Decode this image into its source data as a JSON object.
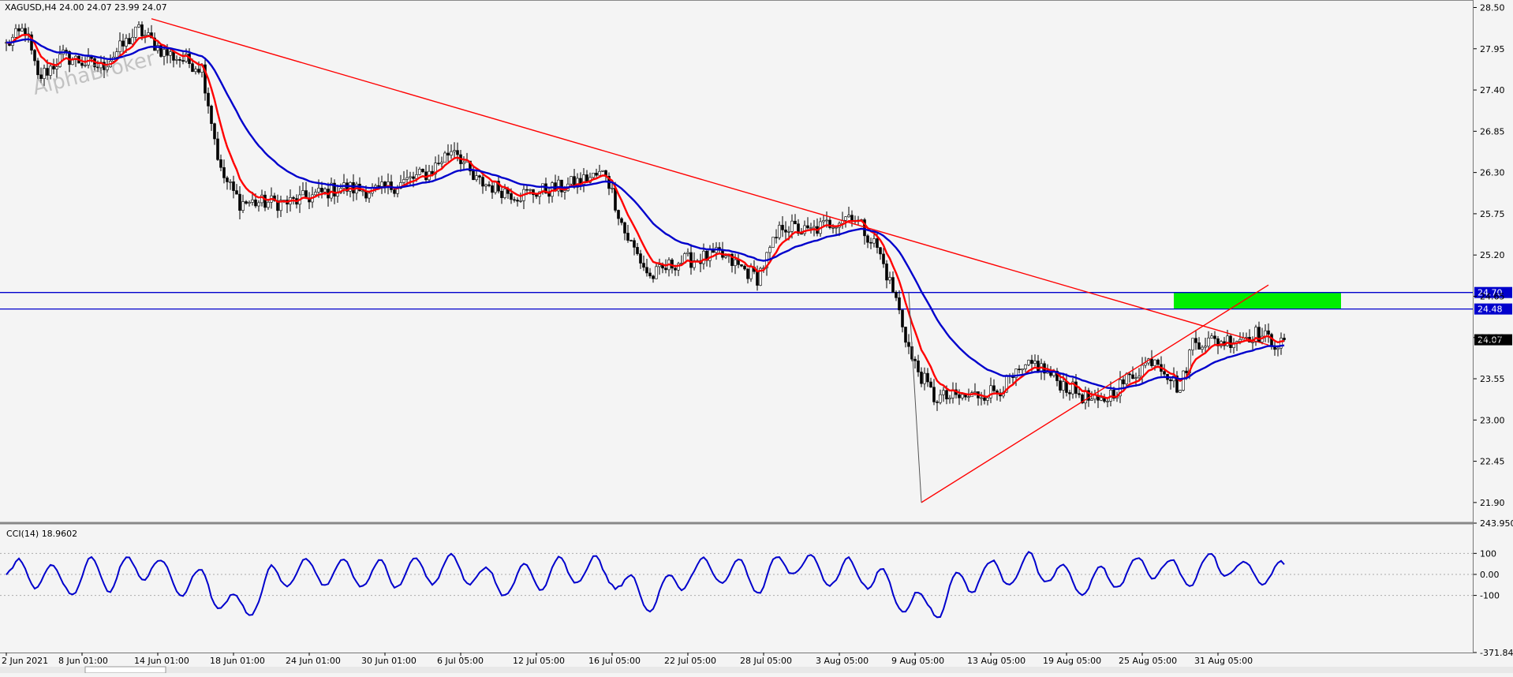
{
  "chart_data": [
    {
      "type": "candlestick",
      "symbol": "XAGUSD,H4",
      "ohlc_label": "24.00 24.07 23.99 24.07",
      "watermark": "AlphaBroker",
      "ylim": [
        21.625,
        28.6
      ],
      "y_ticks": [
        "28.50",
        "27.95",
        "27.40",
        "26.85",
        "26.30",
        "25.75",
        "25.20",
        "24.65",
        "24.10",
        "23.55",
        "23.00",
        "22.45",
        "21.90"
      ],
      "x_ticks": [
        {
          "bar": 0,
          "label": "2 Jun 2021"
        },
        {
          "bar": 24,
          "label": "8 Jun 01:00"
        },
        {
          "bar": 48,
          "label": "14 Jun 01:00"
        },
        {
          "bar": 72,
          "label": "18 Jun 01:00"
        },
        {
          "bar": 96,
          "label": "24 Jun 01:00"
        },
        {
          "bar": 120,
          "label": "30 Jun 01:00"
        },
        {
          "bar": 144,
          "label": "6 Jul 05:00"
        },
        {
          "bar": 168,
          "label": "12 Jul 05:00"
        },
        {
          "bar": 192,
          "label": "16 Jul 05:00"
        },
        {
          "bar": 216,
          "label": "22 Jul 05:00"
        },
        {
          "bar": 240,
          "label": "28 Jul 05:00"
        },
        {
          "bar": 264,
          "label": "3 Aug 05:00"
        },
        {
          "bar": 288,
          "label": "9 Aug 05:00"
        },
        {
          "bar": 312,
          "label": "13 Aug 05:00"
        },
        {
          "bar": 336,
          "label": "19 Aug 05:00"
        },
        {
          "bar": 360,
          "label": "25 Aug 05:00"
        },
        {
          "bar": 384,
          "label": "31 Aug 05:00"
        }
      ],
      "n_bars": 400,
      "price_path": [
        [
          0,
          28.0
        ],
        [
          6,
          28.22
        ],
        [
          10,
          27.55
        ],
        [
          18,
          27.85
        ],
        [
          30,
          27.7
        ],
        [
          42,
          28.2
        ],
        [
          50,
          27.9
        ],
        [
          62,
          27.7
        ],
        [
          68,
          26.3
        ],
        [
          74,
          25.9
        ],
        [
          90,
          25.9
        ],
        [
          106,
          26.1
        ],
        [
          118,
          26.05
        ],
        [
          134,
          26.3
        ],
        [
          142,
          26.65
        ],
        [
          148,
          26.2
        ],
        [
          162,
          26.0
        ],
        [
          176,
          26.1
        ],
        [
          190,
          26.3
        ],
        [
          196,
          25.5
        ],
        [
          204,
          24.9
        ],
        [
          212,
          25.1
        ],
        [
          226,
          25.2
        ],
        [
          238,
          24.9
        ],
        [
          246,
          25.6
        ],
        [
          254,
          25.5
        ],
        [
          268,
          25.75
        ],
        [
          276,
          25.3
        ],
        [
          282,
          24.6
        ],
        [
          287,
          23.8
        ],
        [
          294,
          23.3
        ],
        [
          304,
          23.3
        ],
        [
          314,
          23.4
        ],
        [
          326,
          23.75
        ],
        [
          334,
          23.5
        ],
        [
          346,
          23.2
        ],
        [
          354,
          23.5
        ],
        [
          364,
          23.85
        ],
        [
          372,
          23.4
        ],
        [
          376,
          24.05
        ],
        [
          386,
          24.05
        ],
        [
          396,
          24.15
        ],
        [
          404,
          24.0
        ],
        [
          405,
          24.07
        ]
      ],
      "moving_averages": [
        {
          "name": "fast MA",
          "color": "#ff0000",
          "period": 8
        },
        {
          "name": "slow MA",
          "color": "#0000cc",
          "period": 30
        }
      ],
      "horizontal_levels": [
        {
          "value": 24.7,
          "label": "24.70",
          "color": "#0000cc"
        },
        {
          "value": 24.48,
          "label": "24.48",
          "color": "#0000cc"
        }
      ],
      "current_price": {
        "value": 24.07,
        "label": "24.07"
      },
      "trendlines": [
        {
          "name": "descending resistance",
          "color": "#ff0000",
          "from": {
            "bar": 46,
            "price": 28.35
          },
          "to": {
            "bar": 400,
            "price": 24.0
          }
        },
        {
          "name": "ascending support",
          "color": "#ff0000",
          "from": {
            "bar": 290,
            "price": 21.9
          },
          "to": {
            "bar": 400,
            "price": 24.8
          }
        },
        {
          "name": "spike",
          "color": "#555555",
          "from": {
            "bar": 286,
            "price": 24.7
          },
          "to": {
            "bar": 290,
            "price": 21.9
          }
        }
      ],
      "zone": {
        "from_bar": 370,
        "to_bar": 423,
        "low": 24.48,
        "high": 24.7,
        "color": "#00ee00"
      }
    },
    {
      "type": "line",
      "indicator": "CCI(14)",
      "value_label": "18.9602",
      "color": "#0000cc",
      "ylim": [
        -371.842,
        243.95
      ],
      "y_ticks": [
        "243.950",
        "100",
        "0.00",
        "-100",
        "-371.842"
      ],
      "levels": [
        100,
        0,
        -100
      ]
    }
  ],
  "colors": {
    "background": "#f4f4f4",
    "axis_text": "#000000",
    "bull": "#000000",
    "bear": "#000000"
  }
}
